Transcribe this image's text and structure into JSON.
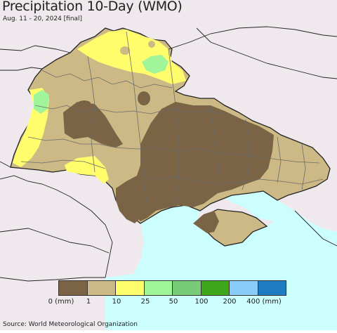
{
  "header": {
    "title": "Precipitation 10-Day (WMO)",
    "subtitle": "Aug. 11 - 20, 2024 [final]"
  },
  "legend": {
    "labels": [
      "0 (mm)",
      "1",
      "10",
      "25",
      "50",
      "100",
      "200",
      "400 (mm)"
    ],
    "colors": [
      "#7b6446",
      "#cdb985",
      "#fffd6c",
      "#a0f59a",
      "#78cc78",
      "#3da81a",
      "#88ccf7",
      "#1e7cc0"
    ]
  },
  "map_colors": {
    "land_outside": "#efe9ee",
    "sea": "#cdfefe",
    "border": "#222222",
    "oblast_line": "#6b6b6b"
  },
  "footer": {
    "source": "Source: World Meteorological Organization"
  }
}
